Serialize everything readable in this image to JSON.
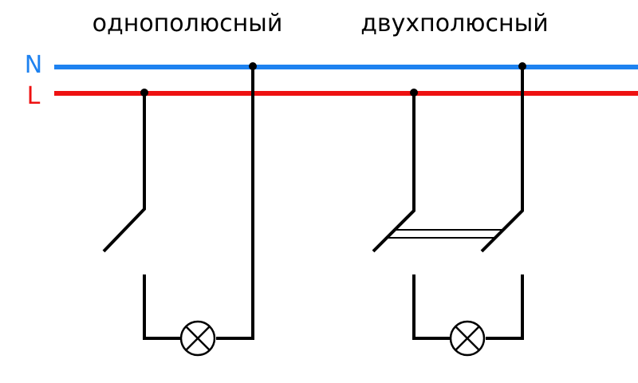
{
  "titles": {
    "single_pole": "однополюсный",
    "double_pole": "двухполюсный"
  },
  "rails": {
    "neutral": {
      "label": "N",
      "color": "#1e82f0"
    },
    "line": {
      "label": "L",
      "color": "#ee1111"
    }
  },
  "wire_color": "#000000"
}
